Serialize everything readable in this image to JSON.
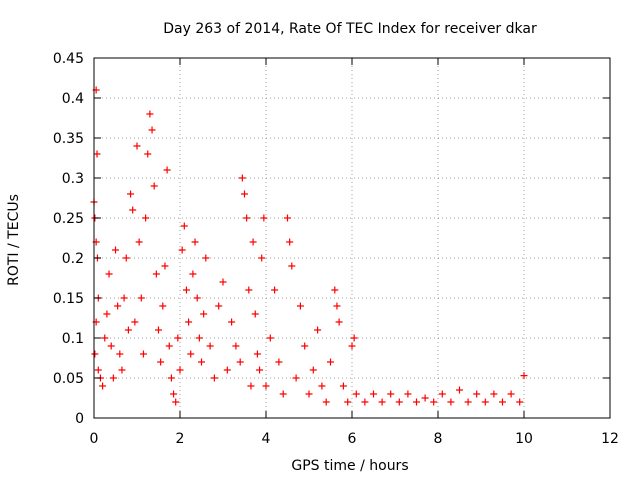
{
  "chart_data": {
    "type": "scatter",
    "title": "Day 263 of 2014, Rate Of TEC Index for receiver dkar",
    "xlabel": "GPS time / hours",
    "ylabel": "ROTI / TECUs",
    "xlim": [
      0,
      12
    ],
    "ylim": [
      0,
      0.45
    ],
    "x_ticks": [
      0,
      2,
      4,
      6,
      8,
      10,
      12
    ],
    "y_ticks": [
      0,
      0.05,
      0.1,
      0.15,
      0.2,
      0.25,
      0.3,
      0.35,
      0.4,
      0.45
    ],
    "x_tick_labels": [
      "0",
      "2",
      "4",
      "6",
      "8",
      "10",
      "12"
    ],
    "y_tick_labels": [
      "0",
      "0.05",
      "0.1",
      "0.15",
      "0.2",
      "0.25",
      "0.3",
      "0.35",
      "0.4",
      "0.45"
    ],
    "grid": true,
    "marker": "+",
    "series": [
      {
        "name": "ROTI",
        "color": "#ff0000",
        "note": "Dense scatter; representative points read from the figure",
        "points": [
          [
            0.05,
            0.41
          ],
          [
            0.07,
            0.33
          ],
          [
            0.0,
            0.27
          ],
          [
            0.02,
            0.25
          ],
          [
            0.05,
            0.22
          ],
          [
            0.08,
            0.2
          ],
          [
            0.1,
            0.15
          ],
          [
            0.05,
            0.12
          ],
          [
            0.02,
            0.08
          ],
          [
            0.1,
            0.06
          ],
          [
            0.15,
            0.05
          ],
          [
            0.2,
            0.04
          ],
          [
            0.25,
            0.1
          ],
          [
            0.3,
            0.13
          ],
          [
            0.35,
            0.18
          ],
          [
            0.4,
            0.09
          ],
          [
            0.45,
            0.05
          ],
          [
            0.5,
            0.21
          ],
          [
            0.55,
            0.14
          ],
          [
            0.6,
            0.08
          ],
          [
            0.65,
            0.06
          ],
          [
            0.7,
            0.15
          ],
          [
            0.75,
            0.2
          ],
          [
            0.8,
            0.11
          ],
          [
            0.85,
            0.28
          ],
          [
            0.9,
            0.26
          ],
          [
            0.95,
            0.12
          ],
          [
            1.0,
            0.34
          ],
          [
            1.05,
            0.22
          ],
          [
            1.1,
            0.15
          ],
          [
            1.15,
            0.08
          ],
          [
            1.2,
            0.25
          ],
          [
            1.25,
            0.33
          ],
          [
            1.3,
            0.38
          ],
          [
            1.35,
            0.36
          ],
          [
            1.4,
            0.29
          ],
          [
            1.45,
            0.18
          ],
          [
            1.5,
            0.11
          ],
          [
            1.55,
            0.07
          ],
          [
            1.6,
            0.14
          ],
          [
            1.65,
            0.19
          ],
          [
            1.7,
            0.31
          ],
          [
            1.75,
            0.09
          ],
          [
            1.8,
            0.05
          ],
          [
            1.85,
            0.03
          ],
          [
            1.9,
            0.02
          ],
          [
            1.95,
            0.1
          ],
          [
            2.0,
            0.06
          ],
          [
            2.05,
            0.21
          ],
          [
            2.1,
            0.24
          ],
          [
            2.15,
            0.16
          ],
          [
            2.2,
            0.12
          ],
          [
            2.25,
            0.08
          ],
          [
            2.3,
            0.18
          ],
          [
            2.35,
            0.22
          ],
          [
            2.4,
            0.15
          ],
          [
            2.45,
            0.1
          ],
          [
            2.5,
            0.07
          ],
          [
            2.55,
            0.13
          ],
          [
            2.6,
            0.2
          ],
          [
            2.7,
            0.09
          ],
          [
            2.8,
            0.05
          ],
          [
            2.9,
            0.14
          ],
          [
            3.0,
            0.17
          ],
          [
            3.1,
            0.06
          ],
          [
            3.2,
            0.12
          ],
          [
            3.3,
            0.09
          ],
          [
            3.4,
            0.07
          ],
          [
            3.45,
            0.3
          ],
          [
            3.5,
            0.28
          ],
          [
            3.55,
            0.25
          ],
          [
            3.6,
            0.16
          ],
          [
            3.65,
            0.04
          ],
          [
            3.7,
            0.22
          ],
          [
            3.75,
            0.13
          ],
          [
            3.8,
            0.08
          ],
          [
            3.85,
            0.06
          ],
          [
            3.9,
            0.2
          ],
          [
            3.95,
            0.25
          ],
          [
            4.0,
            0.04
          ],
          [
            4.1,
            0.1
          ],
          [
            4.2,
            0.16
          ],
          [
            4.3,
            0.07
          ],
          [
            4.4,
            0.03
          ],
          [
            4.5,
            0.25
          ],
          [
            4.55,
            0.22
          ],
          [
            4.6,
            0.19
          ],
          [
            4.7,
            0.05
          ],
          [
            4.8,
            0.14
          ],
          [
            4.9,
            0.09
          ],
          [
            5.0,
            0.03
          ],
          [
            5.1,
            0.06
          ],
          [
            5.2,
            0.11
          ],
          [
            5.3,
            0.04
          ],
          [
            5.4,
            0.02
          ],
          [
            5.5,
            0.07
          ],
          [
            5.6,
            0.16
          ],
          [
            5.65,
            0.14
          ],
          [
            5.7,
            0.12
          ],
          [
            5.8,
            0.04
          ],
          [
            5.9,
            0.02
          ],
          [
            6.0,
            0.09
          ],
          [
            6.05,
            0.1
          ],
          [
            6.1,
            0.03
          ],
          [
            6.3,
            0.02
          ],
          [
            6.5,
            0.03
          ],
          [
            6.7,
            0.02
          ],
          [
            6.9,
            0.03
          ],
          [
            7.1,
            0.02
          ],
          [
            7.3,
            0.03
          ],
          [
            7.5,
            0.02
          ],
          [
            7.7,
            0.025
          ],
          [
            7.9,
            0.02
          ],
          [
            8.1,
            0.03
          ],
          [
            8.3,
            0.02
          ],
          [
            8.5,
            0.035
          ],
          [
            8.7,
            0.02
          ],
          [
            8.9,
            0.03
          ],
          [
            9.1,
            0.02
          ],
          [
            9.3,
            0.03
          ],
          [
            9.5,
            0.02
          ],
          [
            9.7,
            0.03
          ],
          [
            9.9,
            0.02
          ],
          [
            10.0,
            0.053
          ]
        ]
      }
    ]
  }
}
